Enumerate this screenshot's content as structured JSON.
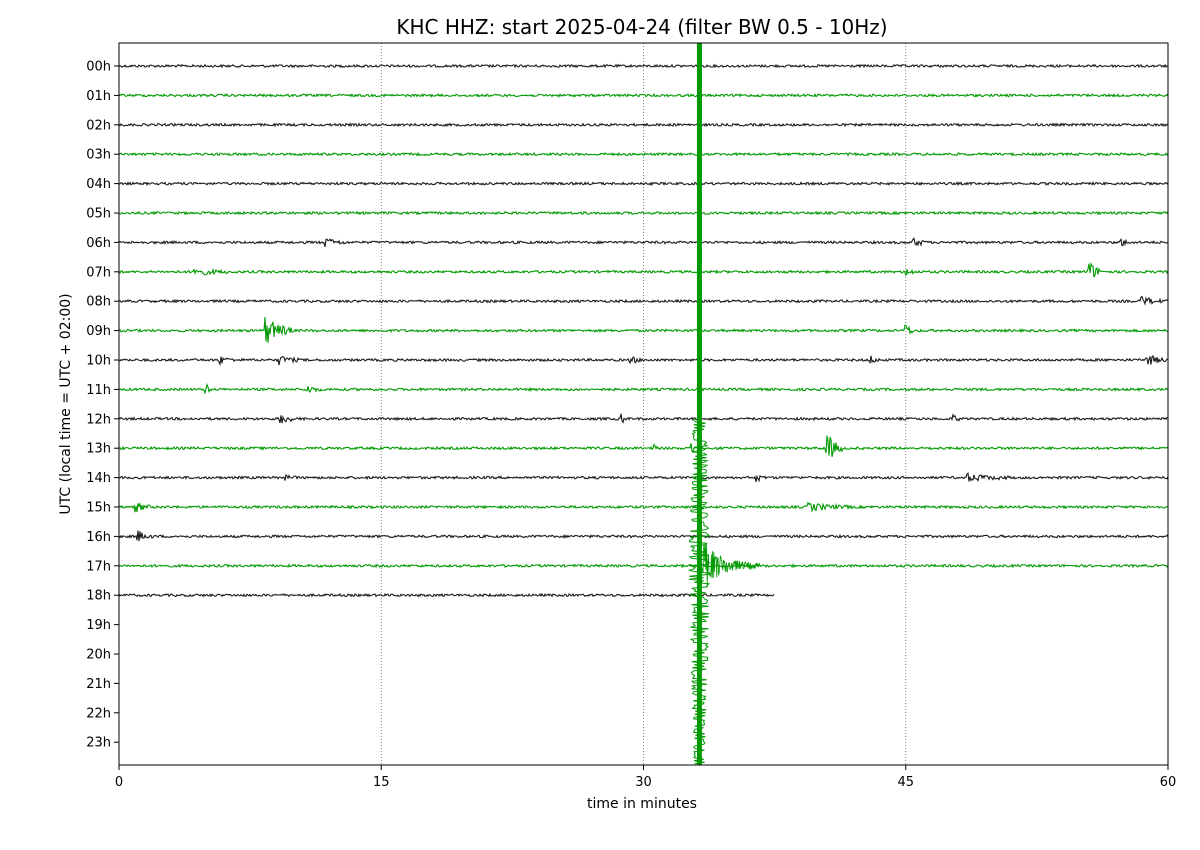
{
  "chart_data": {
    "type": "line",
    "title": "KHC HHZ: start 2025-04-24 (filter BW 0.5 - 10Hz)",
    "xlabel": "time in minutes",
    "ylabel": "UTC (local time = UTC + 02:00)",
    "xlim": [
      0,
      60
    ],
    "xticks": [
      0,
      15,
      30,
      45,
      60
    ],
    "x_tick_labels": [
      "0",
      "15",
      "30",
      "45",
      "60"
    ],
    "y_tick_labels": [
      "00h",
      "01h",
      "02h",
      "03h",
      "04h",
      "05h",
      "06h",
      "07h",
      "08h",
      "09h",
      "10h",
      "11h",
      "12h",
      "13h",
      "14h",
      "15h",
      "16h",
      "17h",
      "18h",
      "19h",
      "20h",
      "21h",
      "22h",
      "23h"
    ],
    "vertical_grid": true,
    "grid_style": "dotted",
    "colors": {
      "even_hours": "#1a1a1a",
      "odd_hours": "#009900"
    },
    "traces": [
      {
        "hour": "00h",
        "color": "#1a1a1a",
        "end_minute": 60,
        "events": []
      },
      {
        "hour": "01h",
        "color": "#009900",
        "end_minute": 60,
        "events": []
      },
      {
        "hour": "02h",
        "color": "#1a1a1a",
        "end_minute": 60,
        "events": []
      },
      {
        "hour": "03h",
        "color": "#009900",
        "end_minute": 60,
        "events": []
      },
      {
        "hour": "04h",
        "color": "#1a1a1a",
        "end_minute": 60,
        "events": []
      },
      {
        "hour": "05h",
        "color": "#009900",
        "end_minute": 60,
        "events": []
      },
      {
        "hour": "06h",
        "color": "#1a1a1a",
        "end_minute": 60,
        "events": [
          {
            "minute": 11.8,
            "amp": 0.35,
            "dur": 1.2
          },
          {
            "minute": 45.5,
            "amp": 0.35,
            "dur": 0.8
          },
          {
            "minute": 57.3,
            "amp": 0.3,
            "dur": 0.6
          }
        ]
      },
      {
        "hour": "07h",
        "color": "#009900",
        "end_minute": 60,
        "events": [
          {
            "minute": 4.3,
            "amp": 0.3,
            "dur": 2.0
          },
          {
            "minute": 45.0,
            "amp": 0.4,
            "dur": 0.6
          },
          {
            "minute": 55.5,
            "amp": 0.9,
            "dur": 0.8
          }
        ]
      },
      {
        "hour": "08h",
        "color": "#1a1a1a",
        "end_minute": 60,
        "events": [
          {
            "minute": 58.5,
            "amp": 0.35,
            "dur": 1.4
          }
        ]
      },
      {
        "hour": "09h",
        "color": "#009900",
        "end_minute": 60,
        "events": [
          {
            "minute": 8.4,
            "amp": 1.2,
            "dur": 1.6
          },
          {
            "minute": 45.0,
            "amp": 0.5,
            "dur": 0.6
          }
        ]
      },
      {
        "hour": "10h",
        "color": "#1a1a1a",
        "end_minute": 60,
        "events": [
          {
            "minute": 5.8,
            "amp": 0.3,
            "dur": 0.8
          },
          {
            "minute": 9.2,
            "amp": 0.35,
            "dur": 1.2
          },
          {
            "minute": 29.3,
            "amp": 0.3,
            "dur": 0.6
          },
          {
            "minute": 43.0,
            "amp": 0.3,
            "dur": 0.5
          },
          {
            "minute": 58.8,
            "amp": 0.45,
            "dur": 1.2
          }
        ]
      },
      {
        "hour": "11h",
        "color": "#009900",
        "end_minute": 60,
        "events": [
          {
            "minute": 5.0,
            "amp": 0.6,
            "dur": 0.2
          },
          {
            "minute": 10.8,
            "amp": 0.3,
            "dur": 0.8
          }
        ]
      },
      {
        "hour": "12h",
        "color": "#1a1a1a",
        "end_minute": 60,
        "events": [
          {
            "minute": 9.2,
            "amp": 0.45,
            "dur": 1.0
          },
          {
            "minute": 28.8,
            "amp": 0.4,
            "dur": 0.2
          },
          {
            "minute": 47.8,
            "amp": 0.3,
            "dur": 0.3
          }
        ]
      },
      {
        "hour": "13h",
        "color": "#009900",
        "end_minute": 60,
        "events": [
          {
            "minute": 30.6,
            "amp": 0.5,
            "dur": 0.2
          },
          {
            "minute": 32.8,
            "amp": 0.5,
            "dur": 0.2
          },
          {
            "minute": 40.5,
            "amp": 1.3,
            "dur": 0.9
          }
        ]
      },
      {
        "hour": "14h",
        "color": "#1a1a1a",
        "end_minute": 60,
        "events": [
          {
            "minute": 9.2,
            "amp": 0.3,
            "dur": 1.0
          },
          {
            "minute": 36.5,
            "amp": 0.3,
            "dur": 0.5
          },
          {
            "minute": 48.5,
            "amp": 0.3,
            "dur": 2.5
          }
        ]
      },
      {
        "hour": "15h",
        "color": "#009900",
        "end_minute": 60,
        "events": [
          {
            "minute": 1.0,
            "amp": 0.35,
            "dur": 1.0
          },
          {
            "minute": 39.5,
            "amp": 0.3,
            "dur": 2.5
          }
        ]
      },
      {
        "hour": "16h",
        "color": "#1a1a1a",
        "end_minute": 60,
        "events": [
          {
            "minute": 1.1,
            "amp": 0.45,
            "dur": 0.8
          }
        ]
      },
      {
        "hour": "17h",
        "color": "#009900",
        "end_minute": 60,
        "events": [
          {
            "minute": 33.2,
            "amp": 7.0,
            "dur": 3.5,
            "type": "quake"
          }
        ]
      },
      {
        "hour": "18h",
        "color": "#1a1a1a",
        "end_minute": 37.5,
        "events": []
      }
    ],
    "earthquake": {
      "minute": 33.2,
      "color": "#009900"
    }
  }
}
